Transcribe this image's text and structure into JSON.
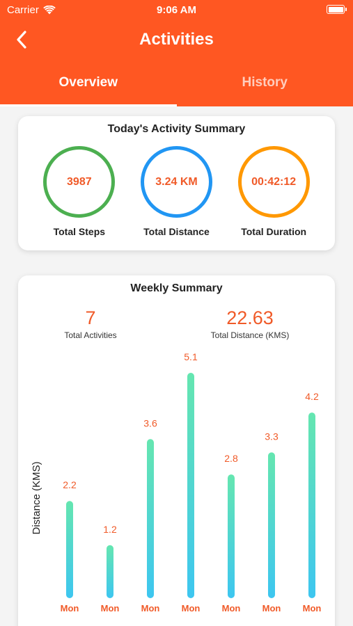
{
  "status_bar": {
    "carrier": "Carrier",
    "time": "9:06 AM"
  },
  "nav": {
    "title": "Activities",
    "back_icon": "chevron-left-icon"
  },
  "tabs": [
    {
      "label": "Overview",
      "active": true
    },
    {
      "label": "History",
      "active": false
    }
  ],
  "today": {
    "title": "Today's Activity Summary",
    "items": [
      {
        "value": "3987",
        "label": "Total Steps",
        "color": "#4caf50"
      },
      {
        "value": "3.24 KM",
        "label": "Total Distance",
        "color": "#2196f3"
      },
      {
        "value": "00:42:12",
        "label": "Total Duration",
        "color": "#ff9800"
      }
    ]
  },
  "weekly": {
    "title": "Weekly Summary",
    "total_activities_value": "7",
    "total_activities_label": "Total Activities",
    "total_distance_value": "22.63",
    "total_distance_label": "Total Distance (KMS)"
  },
  "chart_data": {
    "type": "bar",
    "categories": [
      "Mon",
      "Mon",
      "Mon",
      "Mon",
      "Mon",
      "Mon",
      "Mon"
    ],
    "values": [
      2.2,
      1.2,
      3.6,
      5.1,
      2.8,
      3.3,
      4.2
    ],
    "ylabel": "Distance (KMS)",
    "ylim": [
      0,
      5.1
    ],
    "grid": false,
    "bar_gradient": [
      "#65e6b0",
      "#3dc6f0"
    ],
    "label_color": "#f05a28"
  }
}
